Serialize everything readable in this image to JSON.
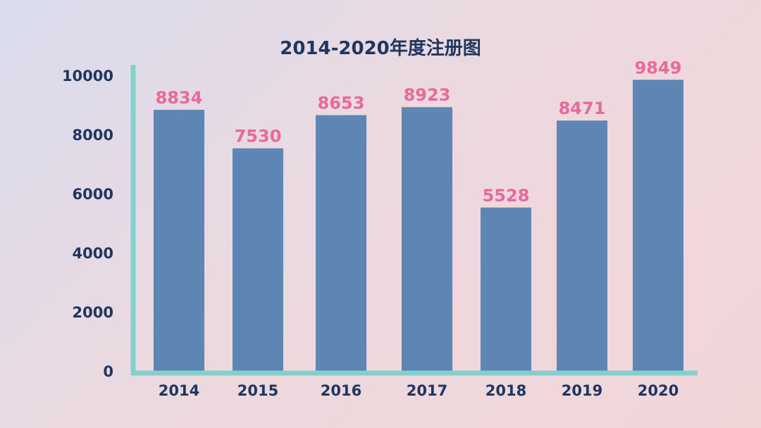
{
  "chart_data": {
    "type": "bar",
    "title": "2014-2020年度注册图",
    "categories": [
      "2014",
      "2015",
      "2016",
      "2017",
      "2018",
      "2019",
      "2020"
    ],
    "values": [
      8834,
      7530,
      8653,
      8923,
      5528,
      8471,
      9849
    ],
    "data_labels": [
      "8834",
      "7530",
      "8653",
      "8923",
      "5528",
      "8471",
      "9849"
    ],
    "y_ticks": [
      "0",
      "2000",
      "4000",
      "6000",
      "8000",
      "10000"
    ],
    "ylim": [
      0,
      10000
    ],
    "xlabel": "",
    "ylabel": "",
    "grid": false,
    "legend": "none",
    "colors": {
      "bar": "#5d86b4",
      "data_label": "#e8699a",
      "axis": "#84d0cc",
      "text": "#1f3660"
    }
  }
}
